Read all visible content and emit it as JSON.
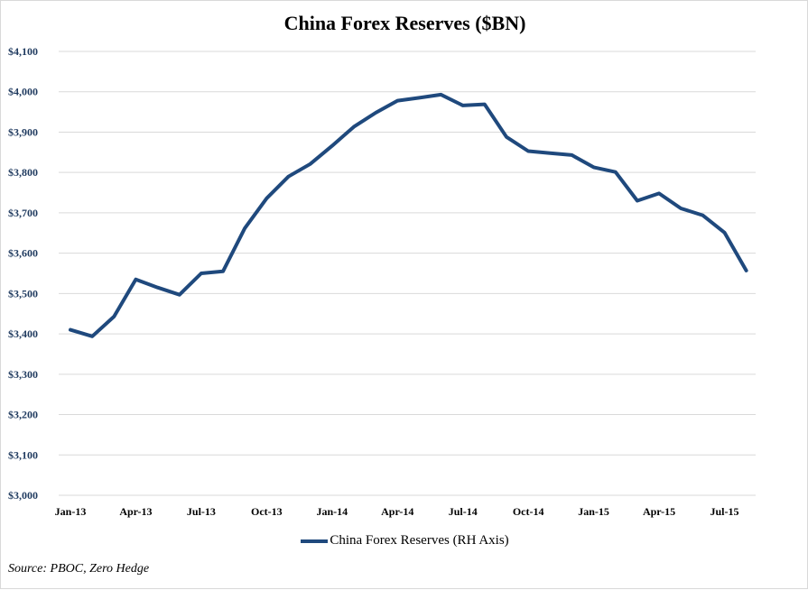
{
  "chart_data": {
    "type": "line",
    "title": "China Forex Reserves ($BN)",
    "xlabel": "",
    "ylabel": "",
    "ylim": [
      3000,
      4100
    ],
    "yticks": [
      "$3,000",
      "$3,100",
      "$3,200",
      "$3,300",
      "$3,400",
      "$3,500",
      "$3,600",
      "$3,700",
      "$3,800",
      "$3,900",
      "$4,000",
      "$4,100"
    ],
    "ytick_values": [
      3000,
      3100,
      3200,
      3300,
      3400,
      3500,
      3600,
      3700,
      3800,
      3900,
      4000,
      4100
    ],
    "xticks": [
      "Jan-13",
      "Apr-13",
      "Jul-13",
      "Oct-13",
      "Jan-14",
      "Apr-14",
      "Jul-14",
      "Oct-14",
      "Jan-15",
      "Apr-15",
      "Jul-15"
    ],
    "xtick_month_index": [
      0,
      3,
      6,
      9,
      12,
      15,
      18,
      21,
      24,
      27,
      30
    ],
    "grid": true,
    "legend_position": "bottom",
    "series": [
      {
        "name": "China Forex Reserves (RH Axis)",
        "color": "#1f497d",
        "x": [
          "Jan-13",
          "Feb-13",
          "Mar-13",
          "Apr-13",
          "May-13",
          "Jun-13",
          "Jul-13",
          "Aug-13",
          "Sep-13",
          "Oct-13",
          "Nov-13",
          "Dec-13",
          "Jan-14",
          "Feb-14",
          "Mar-14",
          "Apr-14",
          "May-14",
          "Jun-14",
          "Jul-14",
          "Aug-14",
          "Sep-14",
          "Oct-14",
          "Nov-14",
          "Dec-14",
          "Jan-15",
          "Feb-15",
          "Mar-15",
          "Apr-15",
          "May-15",
          "Jun-15",
          "Jul-15",
          "Aug-15"
        ],
        "values": [
          3410,
          3394,
          3443,
          3535,
          3515,
          3497,
          3550,
          3555,
          3662,
          3736,
          3790,
          3821,
          3866,
          3913,
          3948,
          3978,
          3985,
          3993,
          3966,
          3969,
          3888,
          3853,
          3848,
          3843,
          3813,
          3801,
          3730,
          3748,
          3711,
          3694,
          3651,
          3557
        ]
      }
    ]
  },
  "source": "Source: PBOC, Zero Hedge"
}
